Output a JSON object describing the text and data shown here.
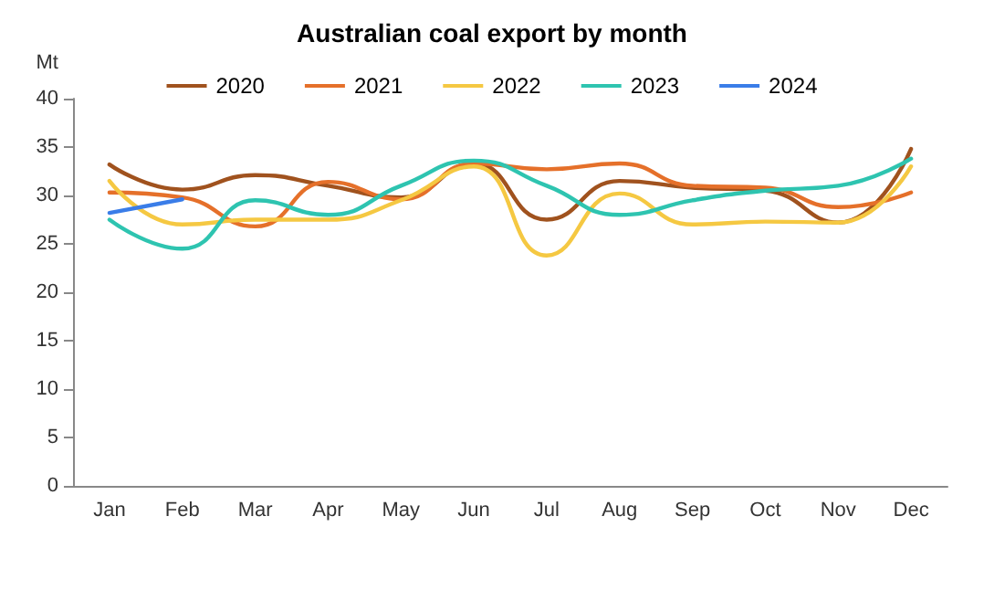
{
  "chart_data": {
    "type": "line",
    "title": "Australian coal export by month",
    "ylabel": "Mt",
    "categories": [
      "Jan",
      "Feb",
      "Mar",
      "Apr",
      "May",
      "Jun",
      "Jul",
      "Aug",
      "Sep",
      "Oct",
      "Nov",
      "Dec"
    ],
    "series": [
      {
        "name": "2020",
        "color": "#a0521e",
        "values": [
          33.2,
          30.6,
          32.1,
          31,
          29.8,
          33.3,
          27.5,
          31.5,
          30.8,
          30.5,
          27.2,
          34.8
        ]
      },
      {
        "name": "2021",
        "color": "#e5702a",
        "values": [
          30.3,
          29.8,
          26.8,
          31.4,
          29.6,
          33.3,
          32.7,
          33.3,
          31,
          30.8,
          28.8,
          30.3
        ]
      },
      {
        "name": "2022",
        "color": "#f5c842",
        "values": [
          31.5,
          27,
          27.5,
          27.5,
          29.5,
          33,
          23.8,
          30.2,
          27,
          27.3,
          27.2,
          33
        ]
      },
      {
        "name": "2023",
        "color": "#2ec4b0",
        "values": [
          27.5,
          24.5,
          29.5,
          28,
          31,
          33.6,
          31,
          28,
          29.5,
          30.5,
          31,
          33.8
        ]
      },
      {
        "name": "2024",
        "color": "#3a7de8",
        "values": [
          28.2,
          29.6,
          null,
          null,
          null,
          null,
          null,
          null,
          null,
          null,
          null,
          null
        ]
      }
    ],
    "ylim": [
      0,
      40
    ],
    "yticks": [
      0,
      5,
      10,
      15,
      20,
      25,
      30,
      35,
      40
    ],
    "grid": false,
    "legend": "top",
    "marker": "none",
    "line_style": "solid"
  }
}
